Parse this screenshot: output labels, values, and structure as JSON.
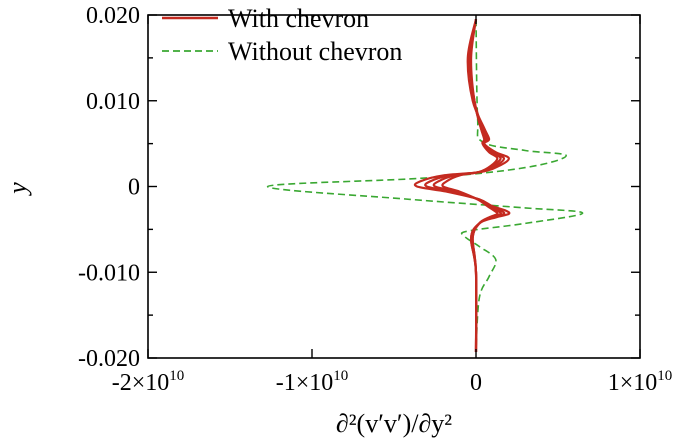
{
  "chart_data": {
    "type": "line",
    "title": "",
    "xlabel": "∂²(v′v′)/∂y²",
    "ylabel": "y",
    "xlim": [
      -20000000000.0,
      10000000000.0
    ],
    "ylim": [
      -0.02,
      0.02
    ],
    "x_ticks": [
      {
        "value": -20000000000.0,
        "mant": "-2×10",
        "exp": "10"
      },
      {
        "value": -10000000000.0,
        "mant": "-1×10",
        "exp": "10"
      },
      {
        "value": 0,
        "mant": "0",
        "exp": ""
      },
      {
        "value": 10000000000.0,
        "mant": "1×10",
        "exp": "10"
      }
    ],
    "y_ticks": [
      {
        "value": 0.02,
        "label": "0.020"
      },
      {
        "value": 0.01,
        "label": "0.010"
      },
      {
        "value": 0,
        "label": "0"
      },
      {
        "value": -0.01,
        "label": "-0.010"
      },
      {
        "value": -0.02,
        "label": "-0.020"
      }
    ],
    "y_minor_step": 0.005,
    "grid": false,
    "legend_position": "top-left",
    "series": [
      {
        "name": "With chevron",
        "style": "solid",
        "color": "#c42a20",
        "curves": [
          {
            "x": [
              0,
              -500000000.0,
              -200000000.0,
              500000000.0,
              800000000.0,
              500000000.0,
              1200000000.0,
              2000000000.0,
              1400000000.0,
              300000000.0,
              -2000000000.0,
              -3400000000.0,
              -3600000000.0,
              -1800000000.0,
              200000000.0,
              1000000000.0,
              1800000000.0,
              2000000000.0,
              1200000000.0,
              200000000.0,
              -300000000.0,
              0,
              0
            ],
            "y": [
              0.0195,
              0.015,
              0.01,
              0.0068,
              0.0055,
              0.005,
              0.004,
              0.0033,
              0.0024,
              0.0017,
              0.0013,
              0.0006,
              0,
              -0.0006,
              -0.0015,
              -0.0023,
              -0.0028,
              -0.0032,
              -0.0036,
              -0.0043,
              -0.006,
              -0.01,
              -0.0193
            ]
          },
          {
            "x": [
              0,
              -400000000.0,
              -100000000.0,
              400000000.0,
              700000000.0,
              500000000.0,
              1000000000.0,
              1700000000.0,
              1200000000.0,
              300000000.0,
              -1600000000.0,
              -2800000000.0,
              -3000000000.0,
              -1500000000.0,
              200000000.0,
              900000000.0,
              1500000000.0,
              1700000000.0,
              1000000000.0,
              200000000.0,
              -300000000.0,
              0,
              0
            ],
            "y": [
              0.0195,
              0.015,
              0.01,
              0.0068,
              0.0055,
              0.005,
              0.004,
              0.0033,
              0.0024,
              0.0017,
              0.0013,
              0.0006,
              0,
              -0.0006,
              -0.0015,
              -0.0023,
              -0.0028,
              -0.0032,
              -0.0036,
              -0.0043,
              -0.006,
              -0.01,
              -0.0193
            ]
          },
          {
            "x": [
              0,
              -400000000.0,
              -100000000.0,
              300000000.0,
              600000000.0,
              400000000.0,
              900000000.0,
              1500000000.0,
              1000000000.0,
              200000000.0,
              -1300000000.0,
              -2300000000.0,
              -2500000000.0,
              -1200000000.0,
              100000000.0,
              800000000.0,
              1300000000.0,
              1500000000.0,
              900000000.0,
              200000000.0,
              -200000000.0,
              0,
              0
            ],
            "y": [
              0.0195,
              0.015,
              0.01,
              0.0068,
              0.0055,
              0.005,
              0.004,
              0.0033,
              0.0024,
              0.0017,
              0.0013,
              0.0006,
              0,
              -0.0006,
              -0.0015,
              -0.0023,
              -0.0028,
              -0.0032,
              -0.0036,
              -0.0043,
              -0.006,
              -0.01,
              -0.0193
            ]
          },
          {
            "x": [
              0,
              -300000000.0,
              -100000000.0,
              300000000.0,
              500000000.0,
              400000000.0,
              800000000.0,
              1300000000.0,
              900000000.0,
              200000000.0,
              -1000000000.0,
              -1800000000.0,
              -2000000000.0,
              -1000000000.0,
              100000000.0,
              700000000.0,
              1100000000.0,
              1300000000.0,
              800000000.0,
              200000000.0,
              -200000000.0,
              0,
              0
            ],
            "y": [
              0.0195,
              0.015,
              0.01,
              0.0068,
              0.0055,
              0.005,
              0.004,
              0.0033,
              0.0024,
              0.0017,
              0.0013,
              0.0006,
              0,
              -0.0006,
              -0.0015,
              -0.0023,
              -0.0028,
              -0.0032,
              -0.0036,
              -0.0043,
              -0.006,
              -0.01,
              -0.0193
            ]
          }
        ]
      },
      {
        "name": "Without chevron",
        "style": "dashed",
        "color": "#3aa832",
        "curves": [
          {
            "x": [
              0,
              100000000.0,
              400000000.0,
              3000000000.0,
              5500000000.0,
              3000000000.0,
              -3000000000.0,
              -12700000000.0,
              -4000000000.0,
              3000000000.0,
              6500000000.0,
              3000000000.0,
              -500000000.0,
              -700000000.0,
              200000000.0,
              1200000000.0,
              800000000.0,
              200000000.0,
              0
            ],
            "y": [
              0.0195,
              0.008,
              0.0052,
              0.0042,
              0.0036,
              0.0022,
              0.001,
              0,
              -0.0015,
              -0.0025,
              -0.0031,
              -0.0043,
              -0.0052,
              -0.0058,
              -0.007,
              -0.0085,
              -0.0105,
              -0.013,
              -0.0193
            ]
          }
        ]
      }
    ]
  }
}
